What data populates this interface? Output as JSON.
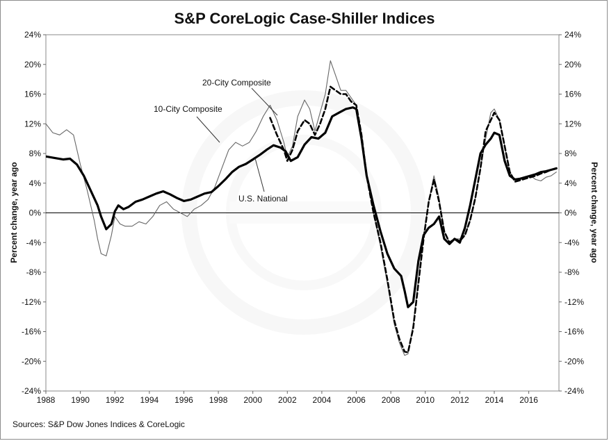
{
  "chart_data": {
    "type": "line",
    "title": "S&P CoreLogic Case-Shiller Indices",
    "source": "Sources:  S&P Dow Jones Indices & CoreLogic",
    "ylabel_left": "Percent change, year ago",
    "ylabel_right": "Percent change, year ago",
    "xlim": [
      1988,
      2017.75
    ],
    "ylim": [
      -24,
      24
    ],
    "x_ticks": [
      "1988",
      "1990",
      "1992",
      "1994",
      "1996",
      "1998",
      "2000",
      "2002",
      "2004",
      "2006",
      "2008",
      "2010",
      "2012",
      "2014",
      "2016"
    ],
    "y_ticks": [
      "24%",
      "20%",
      "16%",
      "12%",
      "8%",
      "4%",
      "0%",
      "-4%",
      "-8%",
      "-12%",
      "-16%",
      "-20%",
      "-24%"
    ],
    "grid": false,
    "annotations": [
      {
        "text": "20-City Composite",
        "series": "20-City Composite"
      },
      {
        "text": "10-City Composite",
        "series": "10-City Composite"
      },
      {
        "text": "U.S. National",
        "series": "U.S. National"
      }
    ],
    "series": [
      {
        "name": "U.S. National",
        "color": "#000000",
        "x": [
          1988.0,
          1988.5,
          1989.0,
          1989.4,
          1989.8,
          1990.2,
          1990.6,
          1991.0,
          1991.2,
          1991.5,
          1991.8,
          1992.0,
          1992.2,
          1992.5,
          1992.8,
          1993.2,
          1993.6,
          1994.0,
          1994.4,
          1994.8,
          1995.2,
          1995.6,
          1996.0,
          1996.4,
          1996.8,
          1997.2,
          1997.6,
          1998.0,
          1998.4,
          1998.8,
          1999.2,
          1999.6,
          2000.0,
          2000.4,
          2000.8,
          2001.2,
          2001.6,
          2001.9,
          2002.2,
          2002.6,
          2003.0,
          2003.4,
          2003.8,
          2004.2,
          2004.6,
          2005.0,
          2005.4,
          2005.8,
          2006.0,
          2006.3,
          2006.6,
          2007.0,
          2007.4,
          2007.8,
          2008.2,
          2008.6,
          2008.8,
          2009.0,
          2009.3,
          2009.6,
          2009.9,
          2010.2,
          2010.5,
          2010.8,
          2011.1,
          2011.4,
          2011.7,
          2012.0,
          2012.3,
          2012.6,
          2012.9,
          2013.2,
          2013.5,
          2013.8,
          2014.0,
          2014.3,
          2014.6,
          2014.9,
          2015.2,
          2015.5,
          2015.8,
          2016.1,
          2016.4,
          2016.7,
          2017.0,
          2017.3,
          2017.6
        ],
        "y": [
          7.6,
          7.4,
          7.2,
          7.3,
          6.5,
          5.0,
          3.0,
          1.0,
          -0.5,
          -2.2,
          -1.5,
          0.2,
          1.0,
          0.5,
          0.8,
          1.5,
          1.8,
          2.2,
          2.6,
          2.9,
          2.5,
          2.0,
          1.6,
          1.8,
          2.2,
          2.6,
          2.8,
          3.6,
          4.5,
          5.5,
          6.2,
          6.6,
          7.2,
          7.8,
          8.5,
          9.1,
          8.8,
          8.3,
          7.0,
          7.5,
          9.2,
          10.2,
          10.0,
          10.8,
          13.0,
          13.5,
          14.0,
          14.2,
          14.0,
          10.0,
          5.0,
          1.0,
          -2.5,
          -5.5,
          -7.5,
          -8.5,
          -10.5,
          -12.7,
          -12.0,
          -6.5,
          -3.0,
          -2.0,
          -1.5,
          -0.5,
          -3.5,
          -4.2,
          -3.5,
          -4.0,
          -2.0,
          1.0,
          4.5,
          8.0,
          9.2,
          10.0,
          10.8,
          10.5,
          7.0,
          5.0,
          4.5,
          4.6,
          4.8,
          5.0,
          5.2,
          5.5,
          5.6,
          5.8,
          6.0
        ]
      },
      {
        "name": "10-City Composite",
        "color": "#666666",
        "x": [
          1988.0,
          1988.4,
          1988.8,
          1989.2,
          1989.6,
          1990.0,
          1990.4,
          1990.8,
          1991.0,
          1991.2,
          1991.5,
          1991.8,
          1992.0,
          1992.3,
          1992.6,
          1993.0,
          1993.4,
          1993.8,
          1994.2,
          1994.6,
          1995.0,
          1995.4,
          1995.8,
          1996.2,
          1996.6,
          1997.0,
          1997.4,
          1997.8,
          1998.2,
          1998.6,
          1999.0,
          1999.4,
          1999.8,
          2000.2,
          2000.6,
          2001.0,
          2001.4,
          2001.8,
          2002.0,
          2002.3,
          2002.6,
          2003.0,
          2003.3,
          2003.6,
          2003.9,
          2004.2,
          2004.5,
          2004.8,
          2005.1,
          2005.4,
          2005.7,
          2006.0,
          2006.3,
          2006.6,
          2007.0,
          2007.4,
          2007.8,
          2008.2,
          2008.5,
          2008.8,
          2009.0,
          2009.3,
          2009.6,
          2009.9,
          2010.2,
          2010.5,
          2010.8,
          2011.1,
          2011.4,
          2011.7,
          2012.0,
          2012.3,
          2012.6,
          2012.9,
          2013.2,
          2013.5,
          2013.8,
          2014.0,
          2014.3,
          2014.6,
          2014.9,
          2015.2,
          2015.5,
          2015.8,
          2016.1,
          2016.4,
          2016.7,
          2017.0,
          2017.3,
          2017.6
        ],
        "y": [
          12.0,
          10.8,
          10.5,
          11.2,
          10.5,
          6.5,
          3.0,
          -1.0,
          -3.5,
          -5.5,
          -5.8,
          -3.0,
          -0.5,
          -1.5,
          -1.8,
          -1.8,
          -1.2,
          -1.5,
          -0.5,
          1.0,
          1.5,
          0.5,
          0.0,
          -0.5,
          0.5,
          1.0,
          1.8,
          3.5,
          6.0,
          8.5,
          9.5,
          9.0,
          9.5,
          11.0,
          13.0,
          14.5,
          12.5,
          9.5,
          7.5,
          9.0,
          13.0,
          15.2,
          14.0,
          11.0,
          13.5,
          16.0,
          20.5,
          18.5,
          16.5,
          16.5,
          15.5,
          14.5,
          10.0,
          5.0,
          0.0,
          -4.5,
          -9.5,
          -15.0,
          -17.5,
          -19.2,
          -19.0,
          -15.0,
          -9.0,
          -3.0,
          1.5,
          5.0,
          2.0,
          -2.5,
          -4.0,
          -3.5,
          -3.5,
          -3.0,
          -1.0,
          2.0,
          6.0,
          10.0,
          13.5,
          14.0,
          12.5,
          9.0,
          5.5,
          4.5,
          4.6,
          4.8,
          5.0,
          4.5,
          4.3,
          4.8,
          5.0,
          5.5
        ]
      },
      {
        "name": "20-City Composite",
        "color": "#000000",
        "x": [
          2001.0,
          2001.4,
          2001.8,
          2002.0,
          2002.3,
          2002.6,
          2003.0,
          2003.3,
          2003.6,
          2003.9,
          2004.2,
          2004.5,
          2004.8,
          2005.1,
          2005.4,
          2005.7,
          2006.0,
          2006.3,
          2006.6,
          2007.0,
          2007.4,
          2007.8,
          2008.2,
          2008.5,
          2008.8,
          2009.0,
          2009.3,
          2009.6,
          2009.9,
          2010.2,
          2010.5,
          2010.8,
          2011.1,
          2011.4,
          2011.7,
          2012.0,
          2012.3,
          2012.6,
          2012.9,
          2013.2,
          2013.5,
          2013.8,
          2014.0,
          2014.3,
          2014.6,
          2014.9,
          2015.2,
          2015.5,
          2015.8,
          2016.1,
          2016.4,
          2016.7,
          2017.0,
          2017.3,
          2017.6
        ],
        "y": [
          12.8,
          10.5,
          8.5,
          7.0,
          8.5,
          11.0,
          12.5,
          12.0,
          10.5,
          12.0,
          14.0,
          17.0,
          16.5,
          16.0,
          16.0,
          15.0,
          14.5,
          10.5,
          5.0,
          0.0,
          -4.0,
          -9.0,
          -14.5,
          -17.0,
          -18.7,
          -18.8,
          -15.5,
          -9.5,
          -3.5,
          1.5,
          4.5,
          1.5,
          -2.5,
          -4.0,
          -3.5,
          -3.8,
          -3.0,
          -1.0,
          2.0,
          6.0,
          11.0,
          12.5,
          13.5,
          12.5,
          9.0,
          5.5,
          4.2,
          4.4,
          4.6,
          4.8,
          5.0,
          5.3,
          5.5,
          5.8,
          6.0
        ]
      }
    ]
  }
}
